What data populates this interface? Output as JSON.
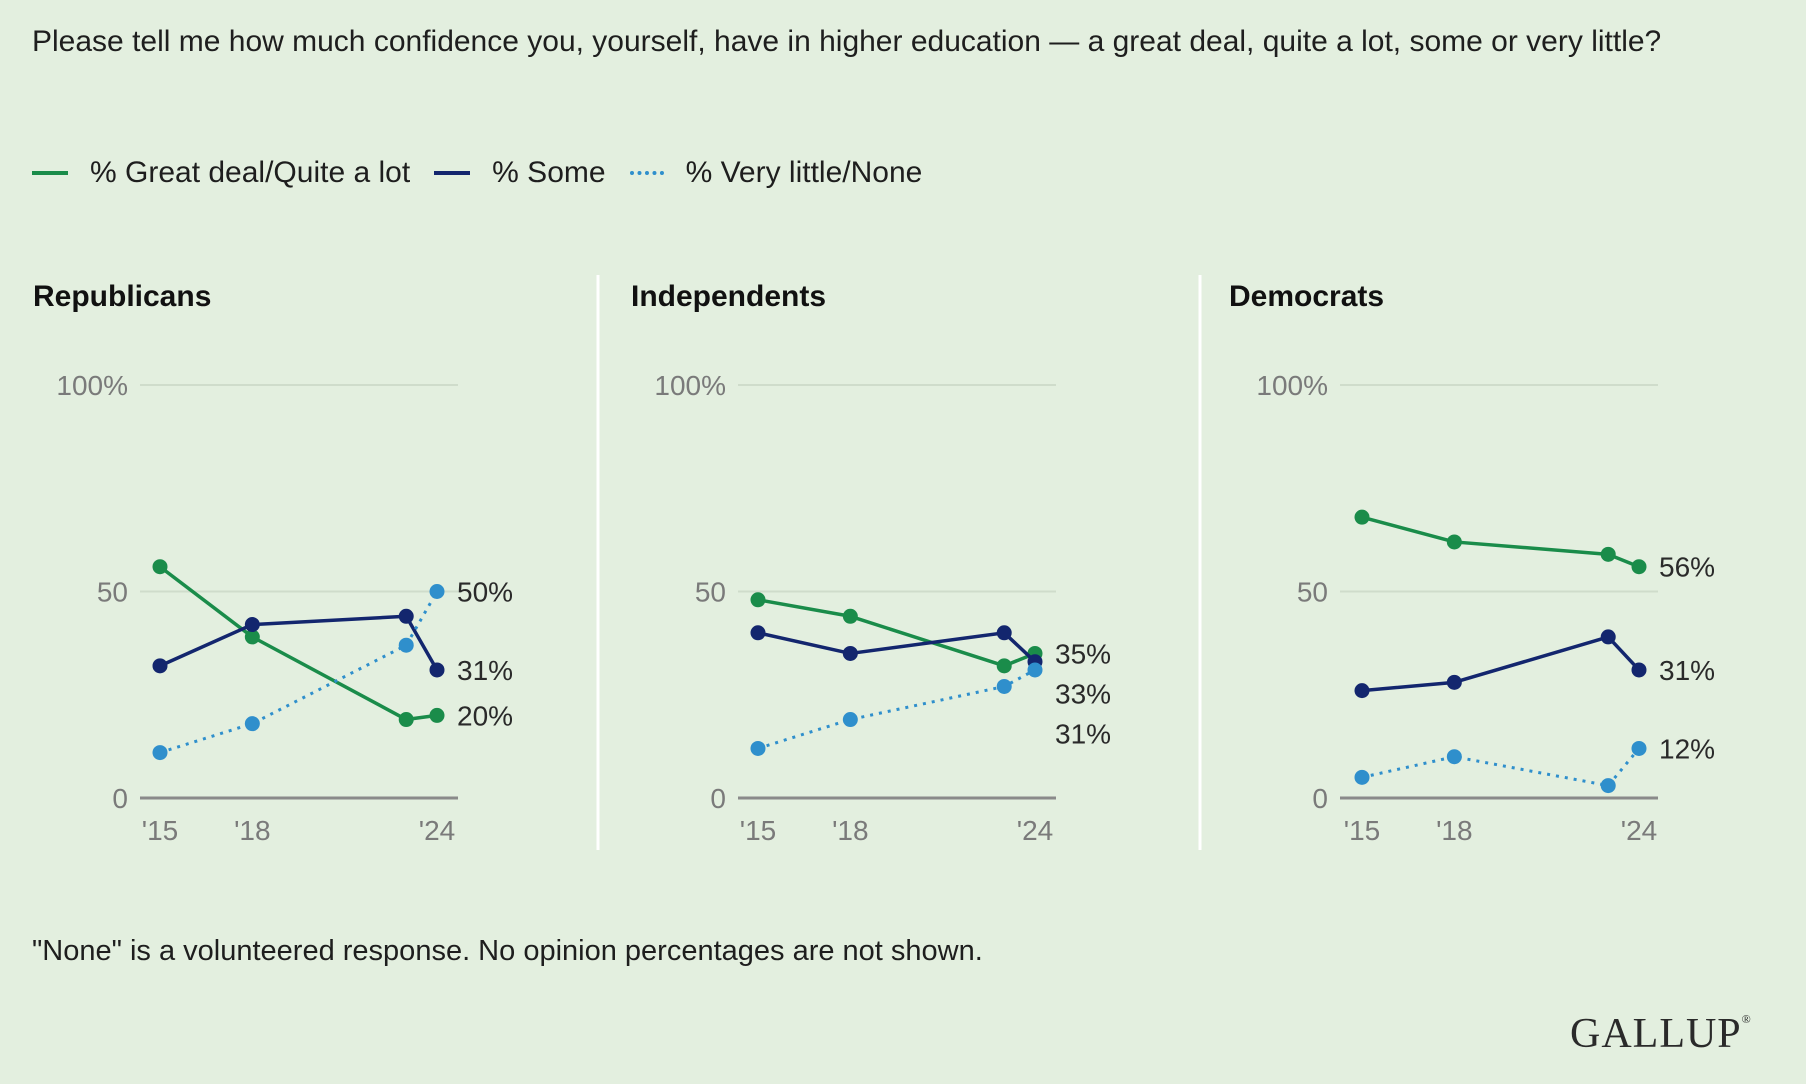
{
  "question": "Please tell me how much confidence you, yourself, have in higher education — a great deal, quite a lot, some or very little?",
  "legend": [
    {
      "label": "% Great deal/Quite a lot",
      "color": "#1a8c4a",
      "style": "solid"
    },
    {
      "label": "% Some",
      "color": "#13266e",
      "style": "solid"
    },
    {
      "label": "% Very little/None",
      "color": "#2f8fcc",
      "style": "dotted"
    }
  ],
  "footnote": "\"None\" is a volunteered response. No opinion percentages are not shown.",
  "brand": "GALLUP",
  "chart_data": [
    {
      "type": "line",
      "title": "Republicans",
      "x": [
        2015,
        2018,
        2023,
        2024
      ],
      "xticks": [
        "'15",
        "'18",
        "'24"
      ],
      "xtick_values": [
        2015,
        2018,
        2024
      ],
      "yticks": [
        "0",
        "50",
        "100%"
      ],
      "ytick_values": [
        0,
        50,
        100
      ],
      "ylim": [
        0,
        100
      ],
      "series": [
        {
          "name": "% Great deal/Quite a lot",
          "values": [
            56,
            39,
            19,
            20
          ],
          "end_label": "20%"
        },
        {
          "name": "% Some",
          "values": [
            32,
            42,
            44,
            31
          ],
          "end_label": "31%"
        },
        {
          "name": "% Very little/None",
          "values": [
            11,
            18,
            37,
            50
          ],
          "end_label": "50%"
        }
      ]
    },
    {
      "type": "line",
      "title": "Independents",
      "x": [
        2015,
        2018,
        2023,
        2024
      ],
      "xticks": [
        "'15",
        "'18",
        "'24"
      ],
      "xtick_values": [
        2015,
        2018,
        2024
      ],
      "yticks": [
        "0",
        "50",
        "100%"
      ],
      "ytick_values": [
        0,
        50,
        100
      ],
      "ylim": [
        0,
        100
      ],
      "series": [
        {
          "name": "% Great deal/Quite a lot",
          "values": [
            48,
            44,
            32,
            35
          ],
          "end_label": "35%"
        },
        {
          "name": "% Some",
          "values": [
            40,
            35,
            40,
            33
          ],
          "end_label": "33%"
        },
        {
          "name": "% Very little/None",
          "values": [
            12,
            19,
            27,
            31
          ],
          "end_label": "31%"
        }
      ]
    },
    {
      "type": "line",
      "title": "Democrats",
      "x": [
        2015,
        2018,
        2023,
        2024
      ],
      "xticks": [
        "'15",
        "'18",
        "'24"
      ],
      "xtick_values": [
        2015,
        2018,
        2024
      ],
      "yticks": [
        "0",
        "50",
        "100%"
      ],
      "ytick_values": [
        0,
        50,
        100
      ],
      "ylim": [
        0,
        100
      ],
      "series": [
        {
          "name": "% Great deal/Quite a lot",
          "values": [
            68,
            62,
            59,
            56
          ],
          "end_label": "56%"
        },
        {
          "name": "% Some",
          "values": [
            26,
            28,
            39,
            31
          ],
          "end_label": "31%"
        },
        {
          "name": "% Very little/None",
          "values": [
            5,
            10,
            3,
            12
          ],
          "end_label": "12%"
        }
      ]
    }
  ]
}
